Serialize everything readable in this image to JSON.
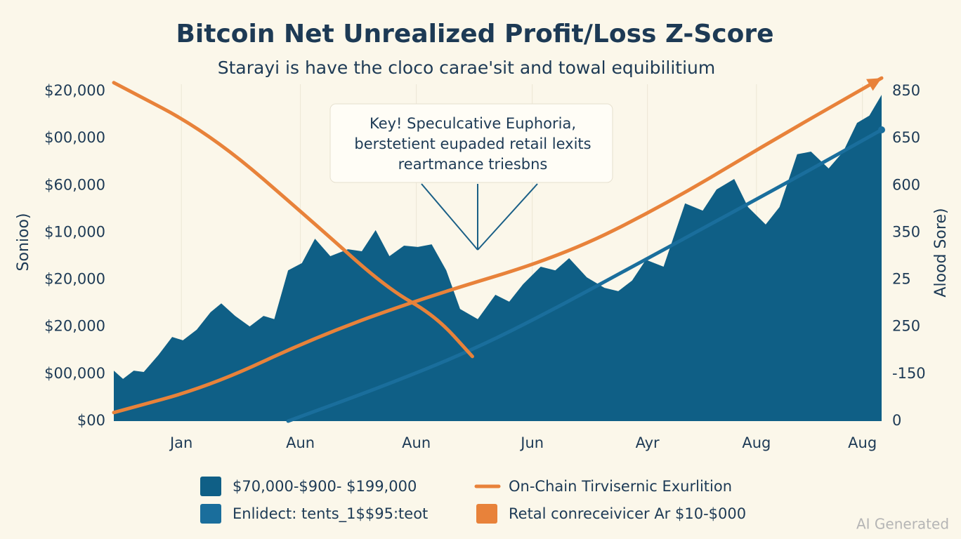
{
  "chart_data": {
    "type": "area-line",
    "title": "Bitcoin Net Unrealized Profit/Loss Z-Score",
    "subtitle": "Starayi is have the cloco carae'sit and towal equibilitium",
    "y_label": "Sonioo)",
    "y2_label": "Alood Sore)",
    "y_labels": [
      "$20,000",
      "$00,000",
      "$60,000",
      "$10,000",
      "$20,000",
      "$20,000",
      "$00,000",
      "$00"
    ],
    "y2_labels": [
      "850",
      "650",
      "600",
      "350",
      "25",
      "250",
      "-150",
      "0"
    ],
    "xlim": [
      0,
      100
    ],
    "ylim": [
      0,
      100
    ],
    "xticks": [
      {
        "value": 8.8,
        "label": "Jan"
      },
      {
        "value": 24.3,
        "label": "Aun"
      },
      {
        "value": 39.4,
        "label": "Aun"
      },
      {
        "value": 54.5,
        "label": "Jun"
      },
      {
        "value": 69.5,
        "label": "Ayr"
      },
      {
        "value": 83.7,
        "label": "Aug"
      },
      {
        "value": 97.5,
        "label": "Aug"
      }
    ],
    "annotation": [
      "Key! Speculcative Euphoria,",
      "berstetient eupaded retail lexits",
      "reartmance triesbns"
    ],
    "watermark": "AI Generated",
    "series": [
      {
        "name": "$70,000-$900- $199,000",
        "kind": "area",
        "legend_marker": "square",
        "color": "#0f5f86",
        "x": [
          0,
          1.2,
          2.6,
          3.9,
          5.8,
          7.6,
          9,
          10.8,
          12.6,
          14,
          15.8,
          17.7,
          19.5,
          20.9,
          22.7,
          24.5,
          26.2,
          28.2,
          30.5,
          32.3,
          34.1,
          35.9,
          37.8,
          39.6,
          41.4,
          43.3,
          45.1,
          47.4,
          49.7,
          51.5,
          53.3,
          55.6,
          57.5,
          59.3,
          61.6,
          63.9,
          65.7,
          67.5,
          69.3,
          71.6,
          74.4,
          76.7,
          78.5,
          80.8,
          82.6,
          84.9,
          86.7,
          89,
          90.8,
          93.1,
          95,
          96.8,
          98.4,
          100
        ],
        "values": [
          15.3,
          12.8,
          15.3,
          14.9,
          20,
          25.5,
          24.5,
          27.7,
          33,
          35.7,
          31.9,
          28.7,
          31.9,
          30.9,
          45.7,
          47.9,
          55.3,
          50,
          52.1,
          51.5,
          57.9,
          50,
          53.2,
          52.8,
          53.6,
          45.7,
          34,
          30.9,
          38.3,
          36.2,
          41.5,
          46.8,
          45.7,
          49.4,
          43.6,
          40.4,
          39.4,
          42.6,
          48.9,
          46.8,
          66,
          63.8,
          70.2,
          73.4,
          64.9,
          59.6,
          64.9,
          80.9,
          81.7,
          76.6,
          81.7,
          90.4,
          92.6,
          98.9
        ]
      },
      {
        "name": "Enlidect: tents_1$$95:teot",
        "kind": "line",
        "legend_marker": "square",
        "color": "#1a6e9c",
        "x": [
          22.7,
          35,
          46.5,
          57,
          67.5,
          78,
          89,
          100
        ],
        "values": [
          0,
          10.5,
          21.3,
          33.5,
          46.8,
          60,
          74,
          88.3
        ]
      },
      {
        "name": "On-Chain Tirvisernic Exurlition",
        "kind": "line",
        "legend_marker": "line",
        "color": "#e8823a",
        "x": [
          0,
          12.6,
          26.3,
          40.1,
          58.4,
          72.1,
          85.8,
          100
        ],
        "values": [
          2.6,
          10.6,
          25.5,
          37.2,
          50,
          66,
          85.1,
          104
        ]
      },
      {
        "name": "Retal conreceivicer Ar $10-$000",
        "kind": "line",
        "legend_marker": "square",
        "color": "#e8823a",
        "x": [
          0,
          12.6,
          26.3,
          35.5,
          41.9,
          46.7
        ],
        "values": [
          102.6,
          87.2,
          59.6,
          40.4,
          31.9,
          19.6
        ]
      }
    ]
  }
}
